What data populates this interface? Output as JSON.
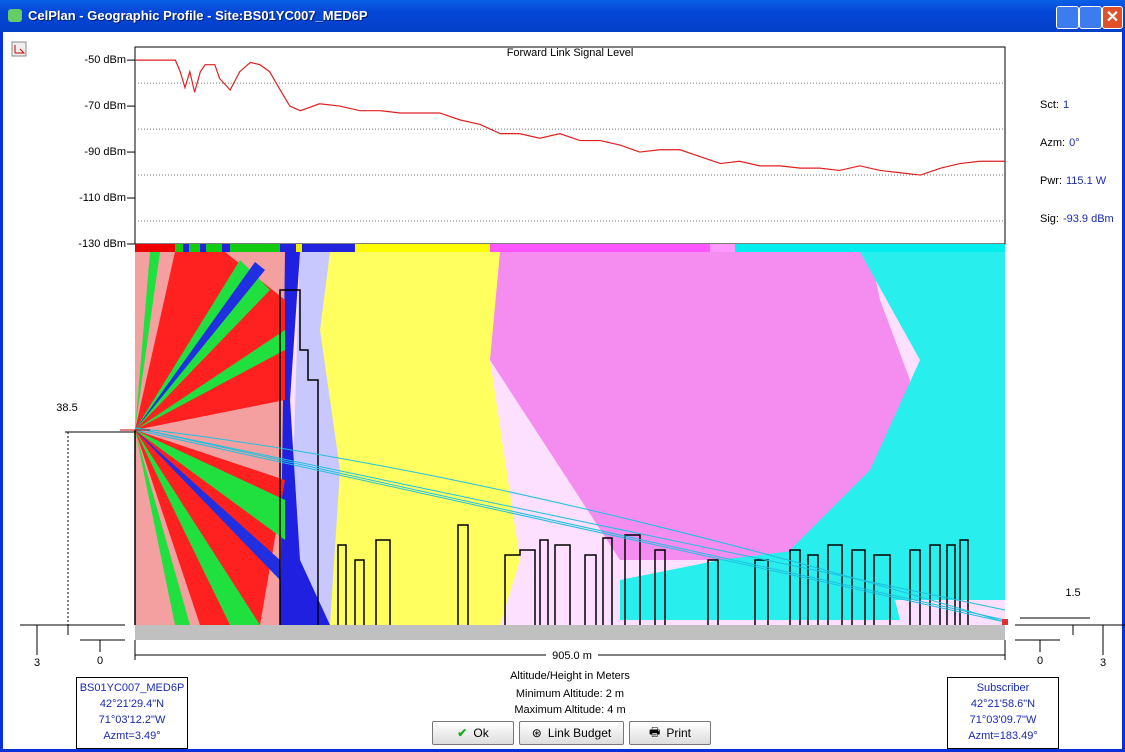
{
  "window": {
    "title": "CelPlan - Geographic Profile - Site:BS01YC007_MED6P"
  },
  "chart_data": {
    "type": "line",
    "title": "Forward Link Signal Level",
    "x": [
      0,
      42,
      47,
      52,
      57,
      62,
      68,
      73,
      83,
      88,
      99,
      109,
      120,
      130,
      140,
      151,
      161,
      172,
      192,
      213,
      234,
      255,
      276,
      317,
      338,
      359,
      380,
      400,
      421,
      442,
      463,
      484,
      505,
      525,
      546,
      567,
      588,
      609,
      629,
      650,
      671,
      692,
      712,
      733,
      754,
      775,
      796,
      817,
      838,
      858,
      879,
      905
    ],
    "series": [
      {
        "name": "Forward Link Signal Level",
        "color": "#e02020",
        "values": [
          -50,
          -50,
          -55,
          -62,
          -55,
          -64,
          -55,
          -52,
          -52,
          -58,
          -63,
          -55,
          -51,
          -52,
          -55,
          -63,
          -70,
          -72,
          -69,
          -70,
          -72,
          -72,
          -73,
          -73,
          -76,
          -78,
          -82,
          -82,
          -84,
          -82,
          -85,
          -85,
          -87,
          -90,
          -89,
          -89,
          -92,
          -95,
          -94,
          -96,
          -96,
          -97,
          -97,
          -98,
          -96,
          -98,
          -99,
          -100,
          -97,
          -95,
          -94,
          -94
        ]
      }
    ],
    "xlim": [
      0,
      905
    ],
    "ylim": [
      -130,
      -44.3
    ],
    "yticks": [
      {
        "value": -50,
        "label": "-50 dBm"
      },
      {
        "value": -70,
        "label": "-70 dBm"
      },
      {
        "value": -90,
        "label": "-90 dBm"
      },
      {
        "value": -110,
        "label": "-110 dBm"
      },
      {
        "value": -130,
        "label": "-130 dBm"
      }
    ]
  },
  "info": [
    {
      "label": "Sct:",
      "value": "1"
    },
    {
      "label": "Azm:",
      "value": "0°"
    },
    {
      "label": "Pwr:",
      "value": "115.1 W"
    },
    {
      "label": "Sig:",
      "value": "-93.9 dBm"
    }
  ],
  "profile": {
    "tx_height": "38.5",
    "rx_height": "1.5",
    "left_altitude": "3",
    "left_ground": "0",
    "right_ground": "0",
    "right_altitude": "3",
    "distance": "905.0 m",
    "caption": "Altitude/Height in Meters",
    "min_altitude": "Minimum Altitude: 2  m",
    "max_altitude": "Maximum Altitude: 4  m"
  },
  "site": {
    "lines": [
      "BS01YC007_MED6P",
      "42°21'29.4\"N",
      "71°03'12.2\"W",
      "Azmt=3.49°"
    ]
  },
  "subscriber": {
    "lines": [
      "Subscriber",
      "42°21'58.6\"N",
      "71°03'09.7\"W",
      "Azmt=183.49°"
    ]
  },
  "buttons": [
    "Ok",
    "Link Budget",
    "Print"
  ]
}
